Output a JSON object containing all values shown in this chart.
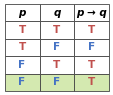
{
  "headers": [
    "p",
    "q",
    "p → q"
  ],
  "rows": [
    [
      "T",
      "T",
      "T"
    ],
    [
      "T",
      "F",
      "F"
    ],
    [
      "F",
      "T",
      "T"
    ],
    [
      "F",
      "F",
      "T"
    ]
  ],
  "highlighted_row": 3,
  "header_bg": "#ffffff",
  "row_bg": "#ffffff",
  "highlight_bg": "#d4e9b0",
  "border_color": "#444444",
  "text_T_color": "#c0504d",
  "text_F_color": "#4472c4",
  "header_text_color": "#000000",
  "font_size": 7.5,
  "border_lw": 0.6
}
